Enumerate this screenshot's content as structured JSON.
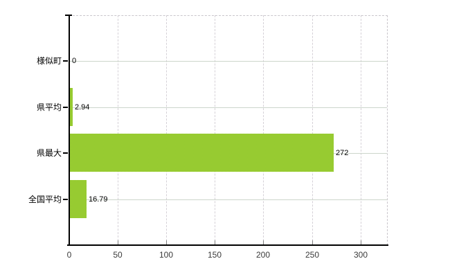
{
  "chart_data": {
    "type": "bar",
    "orientation": "horizontal",
    "title": "",
    "xlabel": "",
    "ylabel": "",
    "categories": [
      "様似町",
      "県平均",
      "県最大",
      "全国平均"
    ],
    "values": [
      0,
      2.94,
      272,
      16.79
    ],
    "value_labels": [
      "0",
      "2.94",
      "272",
      "16.79"
    ],
    "x_ticks": [
      0,
      50,
      100,
      150,
      200,
      250,
      300
    ],
    "x_tick_labels": [
      "0",
      "50",
      "100",
      "150",
      "200",
      "250",
      "300"
    ],
    "xlim": [
      0,
      328
    ],
    "grid": "on",
    "legend": "none",
    "colors": {
      "bar_fill_light": "#a8d436",
      "bar_fill_dark": "#86c22c",
      "axis_line": "#000000",
      "vertical_gridline": "#d5d1d7",
      "horizontal_gridline": "#ccd5cb",
      "plot_border_dashed": "#c9c5cb",
      "tick_mark": "#7f7f7f",
      "tick_label_text": "#3a3a3a",
      "label_text": "#000000",
      "background": "#ffffff"
    }
  }
}
